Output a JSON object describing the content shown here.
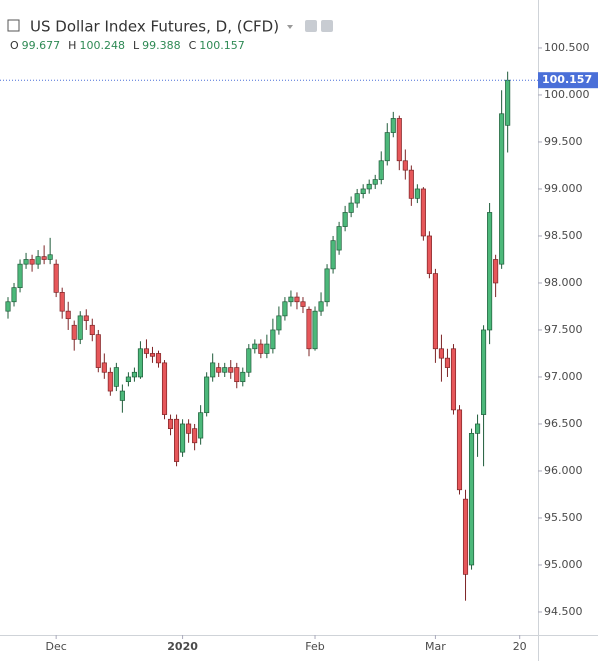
{
  "chart_data": {
    "type": "candlestick",
    "title": "US Dollar Index Futures, D, (CFD)",
    "ohlc_labels": [
      "O",
      "H",
      "L",
      "C"
    ],
    "categories": [
      null,
      null,
      null,
      null,
      null,
      null,
      null,
      null,
      "Dec",
      null,
      null,
      null,
      null,
      null,
      null,
      null,
      null,
      null,
      null,
      null,
      null,
      null,
      null,
      null,
      null,
      null,
      null,
      null,
      null,
      "2020",
      null,
      null,
      null,
      null,
      null,
      null,
      null,
      null,
      null,
      null,
      null,
      null,
      null,
      null,
      null,
      null,
      null,
      null,
      null,
      null,
      null,
      "Feb",
      null,
      null,
      null,
      null,
      null,
      null,
      null,
      null,
      null,
      null,
      null,
      null,
      null,
      null,
      null,
      null,
      null,
      null,
      null,
      "Mar",
      null,
      null,
      null,
      null,
      null,
      null,
      null,
      null,
      null,
      null,
      null,
      null,
      null,
      "20"
    ],
    "open": [
      97.7,
      97.8,
      97.95,
      98.2,
      98.25,
      98.2,
      98.28,
      98.25,
      98.2,
      97.9,
      97.7,
      97.55,
      97.4,
      97.65,
      97.55,
      97.45,
      97.15,
      97.05,
      96.9,
      96.75,
      96.95,
      97.0,
      97.0,
      97.3,
      97.25,
      97.25,
      97.15,
      96.55,
      96.55,
      96.2,
      96.5,
      96.45,
      96.35,
      96.62,
      97.0,
      97.1,
      97.05,
      97.1,
      97.1,
      96.95,
      97.05,
      97.3,
      97.35,
      97.25,
      97.3,
      97.5,
      97.65,
      97.8,
      97.85,
      97.8,
      97.72,
      97.3,
      97.7,
      97.8,
      98.15,
      98.35,
      98.6,
      98.75,
      98.85,
      98.95,
      99.0,
      99.05,
      99.1,
      99.3,
      99.6,
      99.75,
      99.3,
      99.2,
      98.9,
      99.0,
      98.5,
      98.1,
      97.3,
      97.2,
      97.3,
      96.65,
      95.7,
      95.0,
      96.4,
      96.6,
      97.5,
      98.25,
      98.2,
      99.677,
      null,
      null
    ],
    "high": [
      97.85,
      98.0,
      98.25,
      98.32,
      98.3,
      98.35,
      98.4,
      98.48,
      98.25,
      97.95,
      97.8,
      97.6,
      97.7,
      97.72,
      97.62,
      97.5,
      97.25,
      97.1,
      97.15,
      96.92,
      97.05,
      97.1,
      97.38,
      97.4,
      97.32,
      97.28,
      97.18,
      96.6,
      96.6,
      96.55,
      96.55,
      96.5,
      96.7,
      97.05,
      97.25,
      97.15,
      97.15,
      97.18,
      97.15,
      97.1,
      97.35,
      97.4,
      97.4,
      97.45,
      97.62,
      97.75,
      97.85,
      97.92,
      97.9,
      97.85,
      97.75,
      97.75,
      97.9,
      98.2,
      98.5,
      98.65,
      98.82,
      98.92,
      99.0,
      99.05,
      99.1,
      99.15,
      99.4,
      99.7,
      99.82,
      99.78,
      99.42,
      99.25,
      99.05,
      99.02,
      98.55,
      98.15,
      97.45,
      97.3,
      97.35,
      96.7,
      95.8,
      96.45,
      96.6,
      97.55,
      98.85,
      98.3,
      100.05,
      100.248,
      null,
      null
    ],
    "low": [
      97.62,
      97.75,
      97.9,
      98.15,
      98.12,
      98.15,
      98.2,
      98.2,
      97.85,
      97.62,
      97.5,
      97.28,
      97.35,
      97.5,
      97.38,
      97.05,
      96.98,
      96.8,
      96.85,
      96.62,
      96.9,
      96.95,
      96.98,
      97.2,
      97.15,
      97.1,
      96.55,
      96.38,
      96.05,
      96.15,
      96.3,
      96.22,
      96.28,
      96.58,
      96.95,
      97.0,
      97.0,
      96.98,
      96.88,
      96.9,
      97.0,
      97.25,
      97.2,
      97.2,
      97.25,
      97.45,
      97.6,
      97.75,
      97.72,
      97.68,
      97.22,
      97.28,
      97.65,
      97.75,
      98.1,
      98.3,
      98.55,
      98.7,
      98.8,
      98.9,
      98.95,
      99.0,
      99.05,
      99.25,
      99.55,
      99.2,
      99.1,
      98.82,
      98.85,
      98.45,
      98.05,
      97.15,
      96.95,
      97.0,
      96.6,
      95.75,
      94.62,
      94.95,
      96.15,
      96.05,
      97.35,
      97.85,
      98.15,
      99.388,
      null,
      null
    ],
    "close": [
      97.8,
      97.95,
      98.2,
      98.25,
      98.2,
      98.28,
      98.25,
      98.3,
      97.9,
      97.7,
      97.62,
      97.4,
      97.65,
      97.6,
      97.45,
      97.1,
      97.05,
      96.85,
      97.1,
      96.85,
      97.0,
      97.05,
      97.3,
      97.25,
      97.22,
      97.15,
      96.6,
      96.45,
      96.1,
      96.5,
      96.4,
      96.3,
      96.62,
      97.0,
      97.15,
      97.05,
      97.1,
      97.05,
      96.95,
      97.05,
      97.3,
      97.35,
      97.25,
      97.35,
      97.5,
      97.65,
      97.8,
      97.85,
      97.8,
      97.75,
      97.3,
      97.7,
      97.8,
      98.15,
      98.45,
      98.6,
      98.75,
      98.85,
      98.95,
      99.0,
      99.05,
      99.1,
      99.3,
      99.6,
      99.75,
      99.3,
      99.2,
      98.9,
      99.0,
      98.5,
      98.1,
      97.3,
      97.2,
      97.1,
      96.65,
      95.8,
      94.9,
      96.4,
      96.5,
      97.5,
      98.75,
      98.0,
      99.8,
      100.157,
      null,
      null
    ],
    "up_color": "#4cb87a",
    "down_color": "#e6575a",
    "ylim": [
      94.255,
      100.957
    ],
    "yticks": [
      {
        "value": 94.5,
        "label": "94.500"
      },
      {
        "value": 95,
        "label": "95.000"
      },
      {
        "value": 95.5,
        "label": "95.500"
      },
      {
        "value": 96,
        "label": "96.000"
      },
      {
        "value": 96.5,
        "label": "96.500"
      },
      {
        "value": 97,
        "label": "97.000"
      },
      {
        "value": 97.5,
        "label": "97.500"
      },
      {
        "value": 98,
        "label": "98.000"
      },
      {
        "value": 98.5,
        "label": "98.500"
      },
      {
        "value": 99,
        "label": "99.000"
      },
      {
        "value": 99.5,
        "label": "99.500"
      },
      {
        "value": 100,
        "label": "100.000"
      },
      {
        "value": 100.5,
        "label": "100.500"
      }
    ],
    "grid": false
  }
}
